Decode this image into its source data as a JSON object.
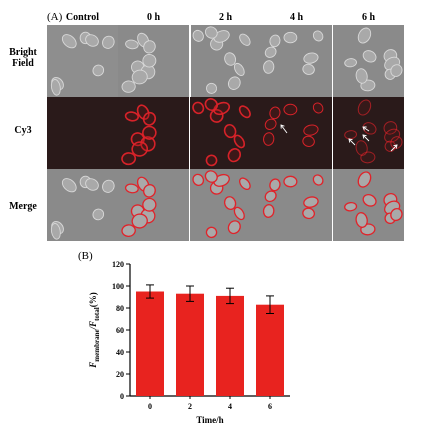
{
  "panel_a_label": "(A)",
  "panel_b_label": "(B)",
  "columns": [
    "Control",
    "0 h",
    "2 h",
    "4 h",
    "6 h"
  ],
  "rows": [
    {
      "label_line1": "Bright",
      "label_line2": "Field",
      "type": "bright"
    },
    {
      "label_line1": "Cy3",
      "label_line2": "",
      "type": "fluor"
    },
    {
      "label_line1": "Merge",
      "label_line2": "",
      "type": "merge"
    }
  ],
  "colors": {
    "bar": "#e8231f",
    "fluor_bg": "#2a1a1a",
    "bright_bg": "#8a8a8a",
    "cy3": "#e0232a"
  },
  "chart_data": {
    "type": "bar",
    "categories": [
      "0",
      "2",
      "4",
      "6"
    ],
    "values": [
      95,
      93,
      91,
      83
    ],
    "errors": [
      6,
      7,
      7,
      8
    ],
    "xlabel": "Time/h",
    "ylabel_main": "F",
    "ylabel_sub1": "membrane",
    "ylabel_mid": "/F",
    "ylabel_sub2": "total",
    "ylabel_unit": "(%)",
    "ylim": [
      0,
      120
    ],
    "yticks": [
      0,
      20,
      40,
      60,
      80,
      100,
      120
    ]
  }
}
